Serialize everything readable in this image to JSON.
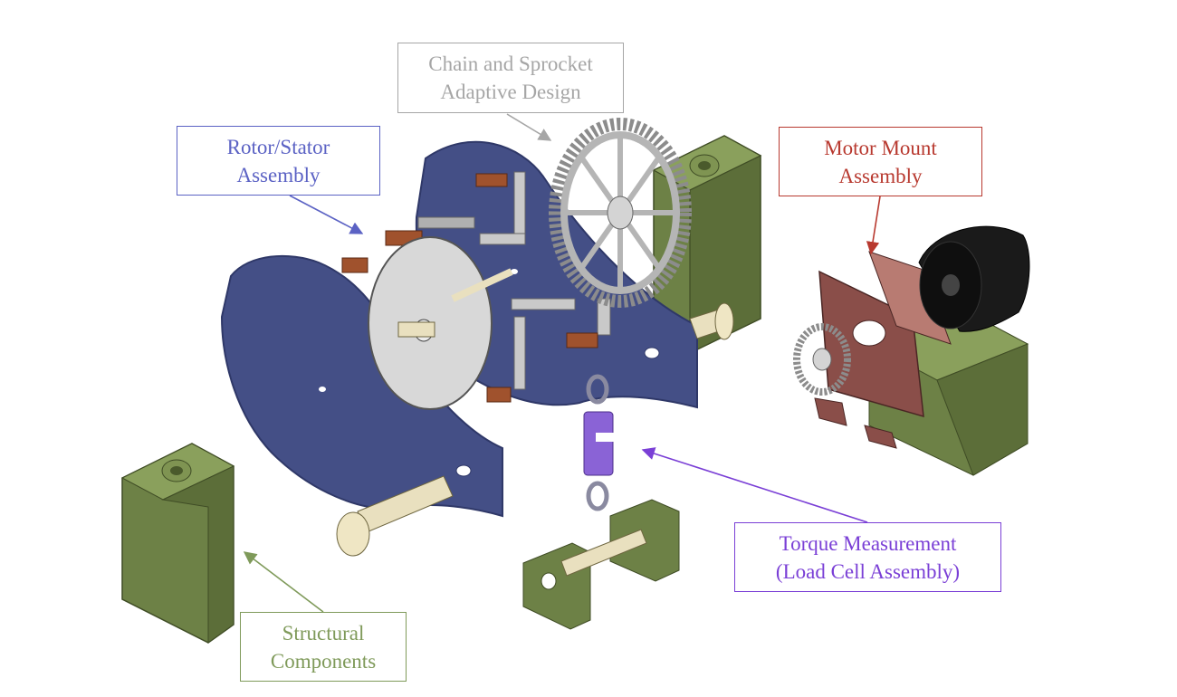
{
  "labels": {
    "chain": {
      "line1": "Chain and Sprocket",
      "line2": "Adaptive Design",
      "color": "#a6a6a6"
    },
    "rotor": {
      "line1": "Rotor/Stator",
      "line2": "Assembly",
      "color": "#5b62c4"
    },
    "motor": {
      "line1": "Motor Mount",
      "line2": "Assembly",
      "color": "#b8392f"
    },
    "torque": {
      "line1": "Torque Measurement",
      "line2": "(Load Cell Assembly)",
      "color": "#7a3fd6"
    },
    "structural": {
      "line1": "Structural",
      "line2": "Components",
      "color": "#7f9a5a"
    }
  },
  "colors": {
    "plate": "#444f86",
    "plate_edge": "#2f3868",
    "disk": "#d4d4d4",
    "frame_green": "#6d8146",
    "frame_green_light": "#8aa05c",
    "copper": "#a0522d",
    "bracket": "#b0b0b0",
    "motor": "#111111",
    "motor_mount": "#8a4e49",
    "load_cell": "#8a63d6",
    "shaft": "#e9e0bf"
  },
  "icons": {
    "plates": "rotor-stator-plates-icon",
    "sprocket": "sprocket-icon",
    "motor": "motor-icon",
    "load_cell": "load-cell-icon",
    "pillow_block": "pillow-block-icon"
  }
}
